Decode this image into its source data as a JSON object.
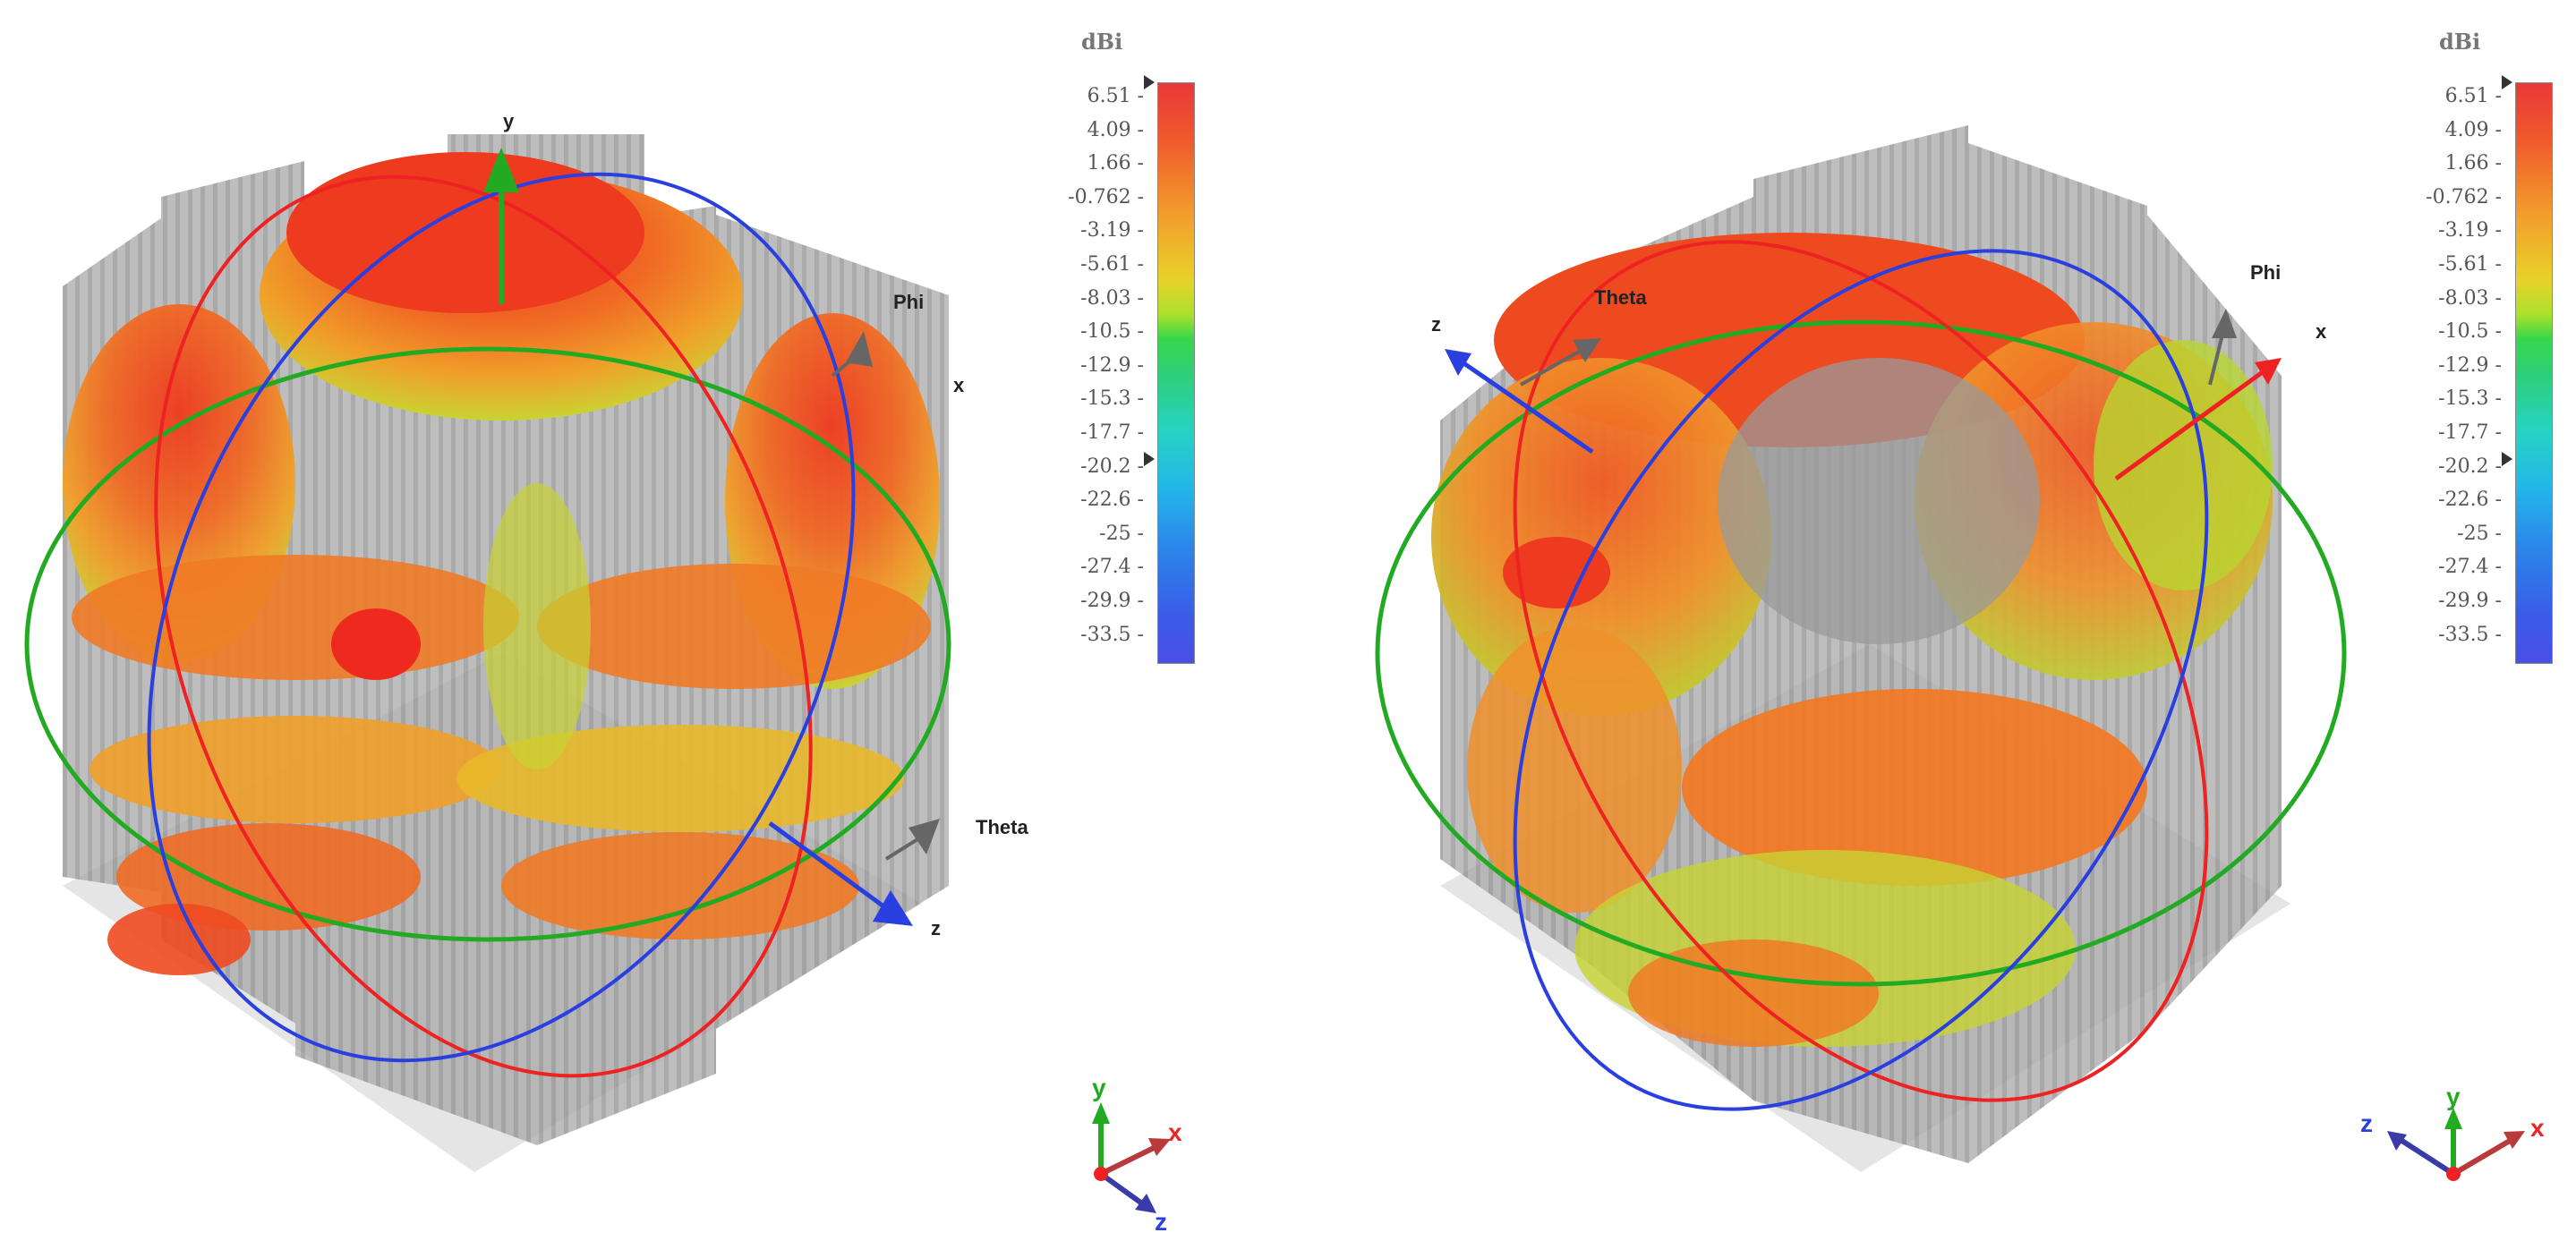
{
  "colorbar": {
    "unit": "dBi",
    "ticks": [
      "6.51",
      "4.09",
      "1.66",
      "-0.762",
      "-3.19",
      "-5.61",
      "-8.03",
      "-10.5",
      "-12.9",
      "-15.3",
      "-17.7",
      "-20.2",
      "-22.6",
      "-25",
      "-27.4",
      "-29.9",
      "-33.5"
    ],
    "max": 6.51,
    "min": -33.5,
    "colors": [
      "#e8393a",
      "#f39a2c",
      "#e8d22a",
      "#39d64a",
      "#25d3c3",
      "#2b86ea",
      "#4a4fe6"
    ]
  },
  "panel_left": {
    "labels": {
      "y": "y",
      "x": "x",
      "z": "z",
      "phi": "Phi",
      "theta": "Theta"
    },
    "triad": {
      "y": "y",
      "x": "x",
      "z": "z"
    }
  },
  "panel_right": {
    "labels": {
      "x": "x",
      "z": "z",
      "phi": "Phi",
      "theta": "Theta"
    },
    "triad": {
      "y": "y",
      "x": "x",
      "z": "z"
    }
  },
  "axis_colors": {
    "x": "#ee2222",
    "y": "#22aa22",
    "z": "#2a3fe0",
    "arrow_gray": "#666666"
  }
}
